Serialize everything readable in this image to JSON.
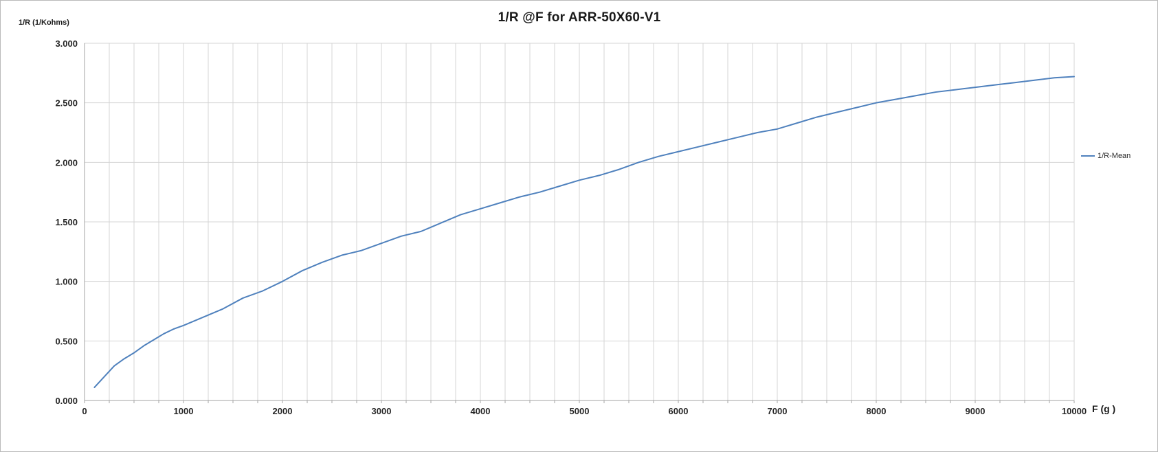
{
  "frame": {
    "background": "#ffffff",
    "border_color": "#b9b9b9"
  },
  "colors": {
    "gridline": "#d4d4d4",
    "axis_line": "#a3a3a3",
    "tick_text": "#262626",
    "series_line": "#4f81bd"
  },
  "chart_data": {
    "type": "line",
    "title": "1/R @F for ARR-50X60-V1",
    "y_axis_title": "1/R  (1/Kohms)",
    "x_axis_title": "F (g )",
    "xlabel": "F (g )",
    "ylabel": "1/R (1/Kohms)",
    "x_range": [
      0,
      10000
    ],
    "y_range": [
      0,
      3
    ],
    "x_minor_step": 250,
    "y_major_step": 0.5,
    "grid": true,
    "x_major_ticks": [
      0,
      1000,
      2000,
      3000,
      4000,
      5000,
      6000,
      7000,
      8000,
      9000,
      10000
    ],
    "x_tick_labels": [
      "0",
      "1000",
      "2000",
      "3000",
      "4000",
      "5000",
      "6000",
      "7000",
      "8000",
      "9000",
      "10000"
    ],
    "y_major_ticks": [
      0,
      0.5,
      1.0,
      1.5,
      2.0,
      2.5,
      3.0
    ],
    "y_tick_labels": [
      "0.000",
      "0.500",
      "1.000",
      "1.500",
      "2.000",
      "2.500",
      "3.000"
    ],
    "legend": {
      "position": "right",
      "entries": [
        {
          "label": "1/R-Mean",
          "color": "#4f81bd"
        }
      ]
    },
    "series": [
      {
        "name": "1/R-Mean",
        "color": "#4f81bd",
        "points": [
          [
            100,
            0.11
          ],
          [
            200,
            0.2
          ],
          [
            300,
            0.29
          ],
          [
            400,
            0.35
          ],
          [
            500,
            0.4
          ],
          [
            600,
            0.46
          ],
          [
            700,
            0.51
          ],
          [
            800,
            0.56
          ],
          [
            900,
            0.6
          ],
          [
            1000,
            0.63
          ],
          [
            1200,
            0.7
          ],
          [
            1400,
            0.77
          ],
          [
            1600,
            0.86
          ],
          [
            1800,
            0.92
          ],
          [
            2000,
            1.0
          ],
          [
            2200,
            1.09
          ],
          [
            2400,
            1.16
          ],
          [
            2600,
            1.22
          ],
          [
            2800,
            1.26
          ],
          [
            3000,
            1.32
          ],
          [
            3200,
            1.38
          ],
          [
            3400,
            1.42
          ],
          [
            3600,
            1.49
          ],
          [
            3800,
            1.56
          ],
          [
            4000,
            1.61
          ],
          [
            4200,
            1.66
          ],
          [
            4400,
            1.71
          ],
          [
            4600,
            1.75
          ],
          [
            4800,
            1.8
          ],
          [
            5000,
            1.85
          ],
          [
            5200,
            1.89
          ],
          [
            5400,
            1.94
          ],
          [
            5600,
            2.0
          ],
          [
            5800,
            2.05
          ],
          [
            6000,
            2.09
          ],
          [
            6200,
            2.13
          ],
          [
            6400,
            2.17
          ],
          [
            6600,
            2.21
          ],
          [
            6800,
            2.25
          ],
          [
            7000,
            2.28
          ],
          [
            7200,
            2.33
          ],
          [
            7400,
            2.38
          ],
          [
            7600,
            2.42
          ],
          [
            7800,
            2.46
          ],
          [
            8000,
            2.5
          ],
          [
            8200,
            2.53
          ],
          [
            8400,
            2.56
          ],
          [
            8600,
            2.59
          ],
          [
            8800,
            2.61
          ],
          [
            9000,
            2.63
          ],
          [
            9200,
            2.65
          ],
          [
            9400,
            2.67
          ],
          [
            9600,
            2.69
          ],
          [
            9800,
            2.71
          ],
          [
            10000,
            2.72
          ]
        ]
      }
    ]
  }
}
